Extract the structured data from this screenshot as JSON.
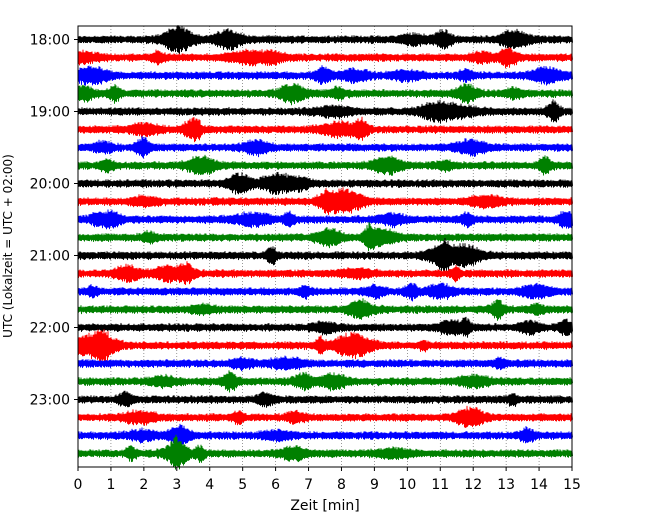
{
  "chart_data": {
    "type": "line",
    "title": "",
    "xlabel": "Zeit  [min]",
    "ylabel": "UTC (Lokalzeit = UTC + 02:00)",
    "xlim": [
      0,
      15
    ],
    "x_ticks": [
      "0",
      "1",
      "2",
      "3",
      "4",
      "5",
      "6",
      "7",
      "8",
      "9",
      "10",
      "11",
      "12",
      "13",
      "14",
      "15"
    ],
    "y_ticks": [
      "18:00",
      "19:00",
      "20:00",
      "21:00",
      "22:00",
      "23:00"
    ],
    "vertical_grid": "dotted, every 1 min",
    "row_interval_min": 15,
    "trace_colors": [
      "#000000",
      "#ff0000",
      "#0000ff",
      "#008000"
    ],
    "traces": [
      {
        "start": "18:00",
        "color": "#000000"
      },
      {
        "start": "18:15",
        "color": "#ff0000"
      },
      {
        "start": "18:30",
        "color": "#0000ff"
      },
      {
        "start": "18:45",
        "color": "#008000"
      },
      {
        "start": "19:00",
        "color": "#000000"
      },
      {
        "start": "19:15",
        "color": "#ff0000"
      },
      {
        "start": "19:30",
        "color": "#0000ff"
      },
      {
        "start": "19:45",
        "color": "#008000"
      },
      {
        "start": "20:00",
        "color": "#000000"
      },
      {
        "start": "20:15",
        "color": "#ff0000"
      },
      {
        "start": "20:30",
        "color": "#0000ff"
      },
      {
        "start": "20:45",
        "color": "#008000"
      },
      {
        "start": "21:00",
        "color": "#000000"
      },
      {
        "start": "21:15",
        "color": "#ff0000"
      },
      {
        "start": "21:30",
        "color": "#0000ff"
      },
      {
        "start": "21:45",
        "color": "#008000"
      },
      {
        "start": "22:00",
        "color": "#000000"
      },
      {
        "start": "22:15",
        "color": "#ff0000"
      },
      {
        "start": "22:30",
        "color": "#0000ff"
      },
      {
        "start": "22:45",
        "color": "#008000"
      },
      {
        "start": "23:00",
        "color": "#000000"
      },
      {
        "start": "23:15",
        "color": "#ff0000"
      },
      {
        "start": "23:30",
        "color": "#0000ff"
      },
      {
        "start": "23:45",
        "color": "#008000"
      }
    ]
  }
}
